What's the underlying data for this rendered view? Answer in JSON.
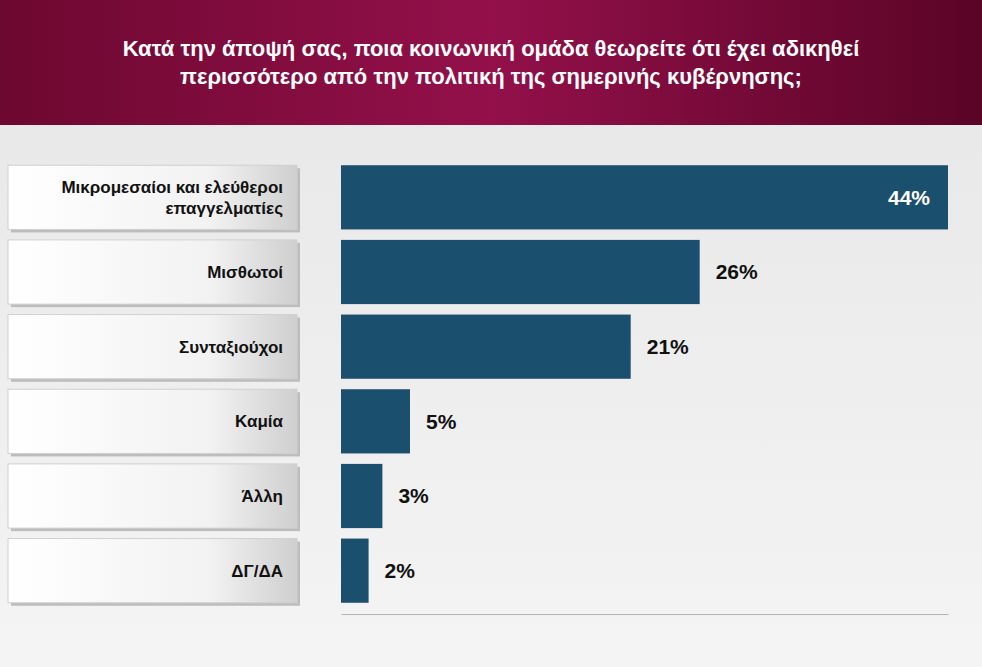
{
  "chart_data": {
    "type": "bar",
    "orientation": "horizontal",
    "title": "Κατά την άποψή σας, ποια κοινωνική ομάδα θεωρείτε ότι έχει αδικηθεί περισσότερο από την πολιτική της σημερινής κυβέρνησης;",
    "categories": [
      "Μικρομεσαίοι και ελεύθεροι επαγγελματίες",
      "Μισθωτοί",
      "Συνταξιούχοι",
      "Καμία",
      "Άλλη",
      "ΔΓ/ΔΑ"
    ],
    "values": [
      44,
      26,
      21,
      5,
      3,
      2
    ],
    "value_labels": [
      "44%",
      "26%",
      "21%",
      "5%",
      "3%",
      "2%"
    ],
    "color": "#1b4f6e",
    "xlim": [
      0,
      44
    ],
    "data_labels": true,
    "tick_labels": false,
    "grid": false
  }
}
